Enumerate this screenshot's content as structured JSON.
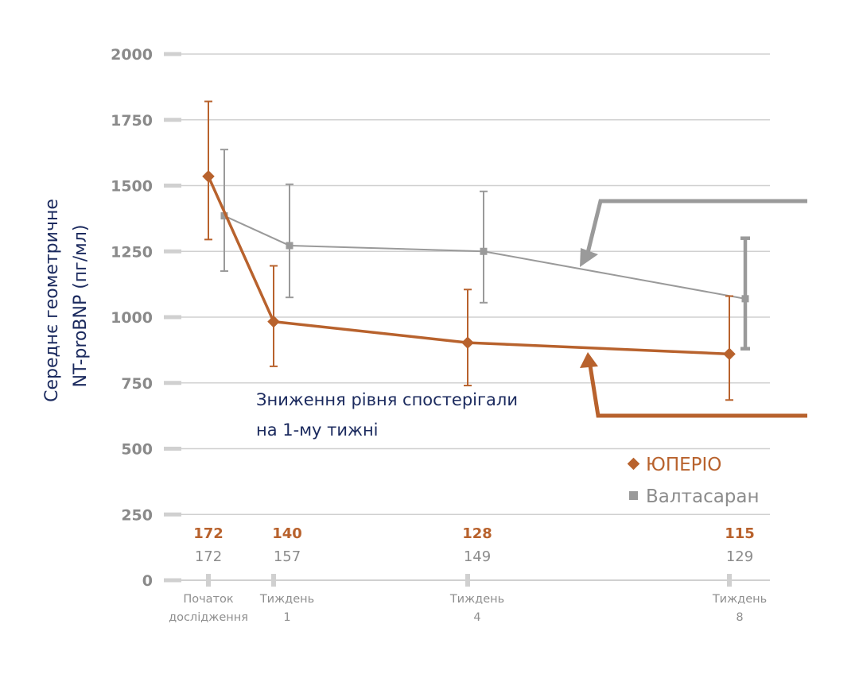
{
  "chart_data": {
    "type": "line",
    "ylabel_line1": "Середнє геометричне",
    "ylabel_line2": "NT-proBNP (пг/мл)",
    "ylim": [
      0,
      2000
    ],
    "yticks": [
      0,
      250,
      500,
      750,
      1000,
      1250,
      1500,
      1750,
      2000
    ],
    "grid": true,
    "x_labels": [
      [
        "Початок",
        "дослідження"
      ],
      [
        "Тиждень",
        "1"
      ],
      [
        "Тиждень",
        "4"
      ],
      [
        "Тиждень",
        "8"
      ]
    ],
    "x_weeks": [
      0,
      1,
      4,
      8
    ],
    "series": [
      {
        "name": "ЮПЕРІО",
        "marker": "diamond",
        "color": "#b8622d",
        "values": [
          1535,
          983,
          903,
          860
        ],
        "err_low": [
          1295,
          813,
          740,
          685
        ],
        "err_high": [
          1820,
          1195,
          1105,
          1080
        ],
        "n": [
          "172",
          "140",
          "128",
          "115"
        ]
      },
      {
        "name": "Валтасаран",
        "marker": "square",
        "color": "#9a9a9a",
        "values": [
          1385,
          1272,
          1250,
          1070
        ],
        "err_low": [
          1175,
          1075,
          1055,
          880
        ],
        "err_high": [
          1637,
          1505,
          1478,
          1300
        ],
        "n": [
          "172",
          "157",
          "149",
          "129"
        ]
      }
    ],
    "annotation_line1": "Зниження рівня спостерігали",
    "annotation_line2": "на 1-му тижні",
    "legend": [
      "ЮПЕРІО",
      "Валтасаран"
    ],
    "legend_position": "bottom-right"
  }
}
